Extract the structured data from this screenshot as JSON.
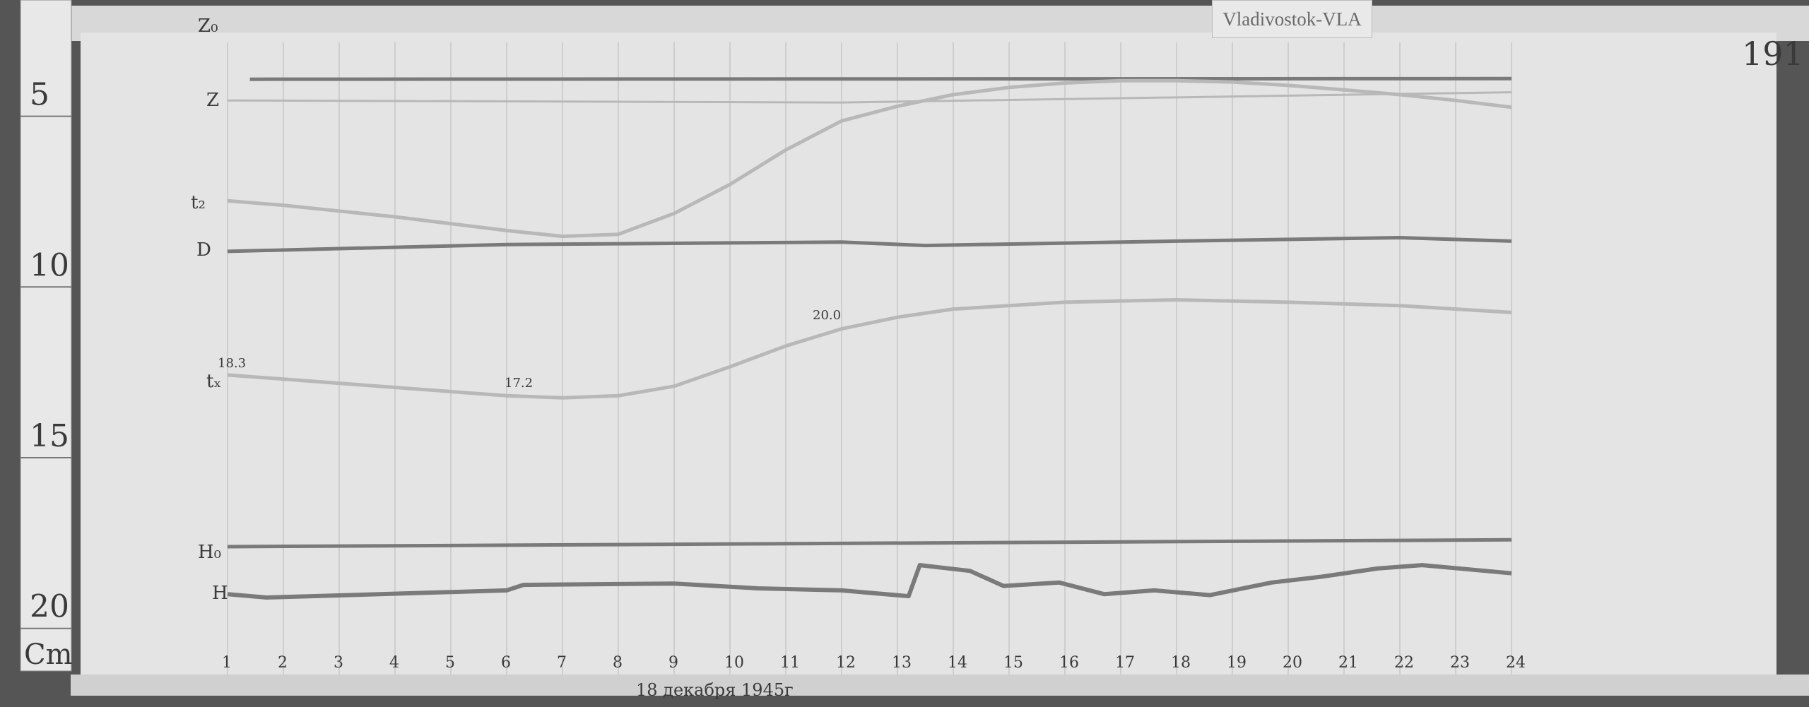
{
  "station_tag": "Vladivostok-VLA",
  "sheet_number": "191",
  "date_note": "18 декабря 1945г",
  "ruler": {
    "labels": [
      "5",
      "10",
      "15",
      "20"
    ],
    "unit": "Cm"
  },
  "trace_labels": {
    "z0": "Z₀",
    "z": "Z",
    "t2": "t₂",
    "d": "D",
    "tx": "tₓ",
    "h0": "H₀",
    "h": "H"
  },
  "annotations": [
    "18.3",
    "17.2",
    "20.0"
  ],
  "colors": {
    "paper": "#e4e4e4",
    "trace": "#7a7a7a",
    "faint_trace": "#b8b8b8",
    "grid": "#9a9a9a"
  },
  "chart_data": {
    "type": "line",
    "x_unit": "hour",
    "y_unit": "cm",
    "x_ticks": [
      "1",
      "2",
      "3",
      "4",
      "5",
      "6",
      "7",
      "8",
      "9",
      "10",
      "11",
      "12",
      "13",
      "14",
      "15",
      "16",
      "17",
      "18",
      "19",
      "20",
      "21",
      "22",
      "23",
      "24"
    ],
    "xlim": [
      1,
      24
    ],
    "grid": "vertical hourly lines",
    "series": [
      {
        "name": "Z₀",
        "points": [
          [
            1.4,
            4.62
          ],
          [
            24,
            4.6
          ]
        ]
      },
      {
        "name": "Z",
        "points": [
          [
            1,
            5.24
          ],
          [
            12,
            5.3
          ],
          [
            24,
            5.0
          ]
        ]
      },
      {
        "name": "t₂",
        "points": [
          [
            1,
            8.18
          ],
          [
            2,
            8.31
          ],
          [
            3,
            8.48
          ],
          [
            4,
            8.65
          ],
          [
            5,
            8.85
          ],
          [
            6,
            9.05
          ],
          [
            7,
            9.22
          ],
          [
            8,
            9.16
          ],
          [
            9,
            8.55
          ],
          [
            10,
            7.7
          ],
          [
            11,
            6.69
          ],
          [
            12,
            5.84
          ],
          [
            13,
            5.41
          ],
          [
            14,
            5.07
          ],
          [
            15,
            4.86
          ],
          [
            16,
            4.73
          ],
          [
            17,
            4.66
          ],
          [
            18,
            4.66
          ],
          [
            19,
            4.7
          ],
          [
            20,
            4.8
          ],
          [
            21,
            4.93
          ],
          [
            22,
            5.07
          ],
          [
            23,
            5.24
          ],
          [
            24,
            5.44
          ]
        ]
      },
      {
        "name": "D",
        "points": [
          [
            1,
            9.66
          ],
          [
            6,
            9.46
          ],
          [
            12,
            9.39
          ],
          [
            13.5,
            9.49
          ],
          [
            18,
            9.36
          ],
          [
            22,
            9.26
          ],
          [
            24,
            9.36
          ]
        ]
      },
      {
        "name": "tₓ",
        "points": [
          [
            1,
            13.28
          ],
          [
            6,
            13.89
          ],
          [
            7,
            13.95
          ],
          [
            8,
            13.89
          ],
          [
            9,
            13.61
          ],
          [
            10,
            13.04
          ],
          [
            11,
            12.43
          ],
          [
            12,
            11.93
          ],
          [
            13,
            11.59
          ],
          [
            14,
            11.35
          ],
          [
            16,
            11.15
          ],
          [
            18,
            11.08
          ],
          [
            20,
            11.15
          ],
          [
            22,
            11.25
          ],
          [
            24,
            11.45
          ]
        ]
      },
      {
        "name": "H₀",
        "points": [
          [
            1,
            18.31
          ],
          [
            24,
            18.11
          ]
        ]
      },
      {
        "name": "H",
        "points": [
          [
            1,
            19.7
          ],
          [
            1.7,
            19.8
          ],
          [
            6,
            19.59
          ],
          [
            6.3,
            19.43
          ],
          [
            9,
            19.39
          ],
          [
            10.5,
            19.53
          ],
          [
            12,
            19.59
          ],
          [
            13.2,
            19.76
          ],
          [
            13.4,
            18.85
          ],
          [
            14.3,
            19.02
          ],
          [
            14.9,
            19.46
          ],
          [
            15.9,
            19.36
          ],
          [
            16.7,
            19.7
          ],
          [
            17.6,
            19.59
          ],
          [
            18.6,
            19.73
          ],
          [
            19.7,
            19.36
          ],
          [
            20.6,
            19.19
          ],
          [
            21.6,
            18.95
          ],
          [
            22.4,
            18.85
          ],
          [
            24,
            19.09
          ]
        ]
      }
    ]
  }
}
